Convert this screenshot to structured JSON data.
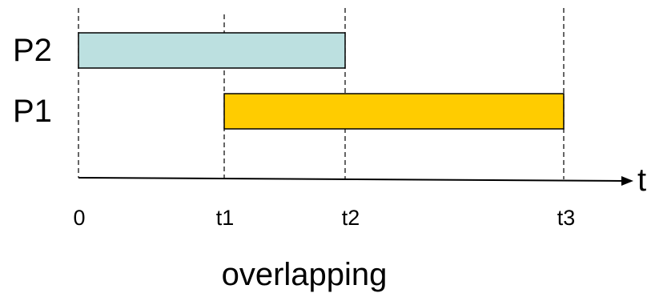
{
  "processes": [
    {
      "label": "P2",
      "start": "0",
      "end": "t2",
      "color": "#BCE0E0"
    },
    {
      "label": "P1",
      "start": "t1",
      "end": "t3",
      "color": "#FFCC00"
    }
  ],
  "axis": {
    "label": "t",
    "ticks": [
      "0",
      "t1",
      "t2",
      "t3"
    ]
  },
  "caption": "overlapping",
  "colors": {
    "stroke": "#000000",
    "p2_fill": "#BCE0E0",
    "p1_fill": "#FFCC00"
  }
}
